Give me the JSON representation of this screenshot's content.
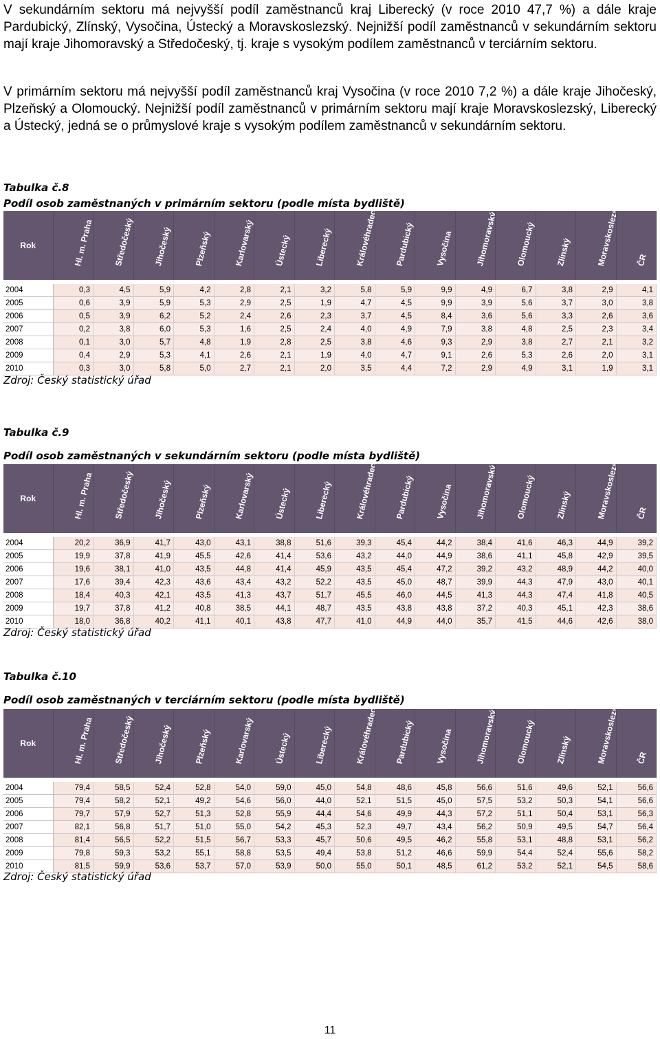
{
  "paragraphs": {
    "p1": "V sekundárním sektoru má nejvyšší podíl zaměstnanců kraj Liberecký (v roce 2010 47,7 %) a dále kraje Pardubický, Zlínský, Vysočina, Ústecký a Moravskoslezský. Nejnižší podíl zaměstnanců v sekundárním sektoru mají kraje Jihomoravský a Středočeský, tj. kraje s vysokým podílem zaměstnanců v terciárním sektoru.",
    "p2": "V primárním sektoru má nejvyšší podíl zaměstnanců kraj Vysočina (v roce 2010 7,2 %) a dále kraje Jihočeský, Plzeňský a Olomoucký. Nejnižší podíl zaměstnanců v primárním sektoru mají kraje Moravskoslezský, Liberecký a Ústecký, jedná se o průmyslové kraje s vysokým podílem zaměstnanců v sekundárním sektoru."
  },
  "header": {
    "rok": "Rok",
    "regions": [
      "Hl. m. Praha",
      "Středočeský",
      "Jihočeský",
      "Plzeňský",
      "Karlovarský",
      "Ústecký",
      "Liberecký",
      "Královéhradecký",
      "Pardubický",
      "Vysočina",
      "Jihomoravský",
      "Olomoucký",
      "Zlínský",
      "Moravskoslezský",
      "ČR"
    ]
  },
  "tables": [
    {
      "label": "Tabulka č.8",
      "title": "Podíl osob zaměstnaných v primárním sektoru (podle místa bydliště)",
      "source": "Zdroj: Český statistický úřad",
      "rows": [
        {
          "year": "2004",
          "values": [
            "0,3",
            "4,5",
            "5,9",
            "4,2",
            "2,8",
            "2,1",
            "3,2",
            "5,8",
            "5,9",
            "9,9",
            "4,9",
            "6,7",
            "3,8",
            "2,9",
            "4,1"
          ]
        },
        {
          "year": "2005",
          "values": [
            "0,6",
            "3,9",
            "5,9",
            "5,3",
            "2,9",
            "2,5",
            "1,9",
            "4,7",
            "4,5",
            "9,9",
            "3,9",
            "5,6",
            "3,7",
            "3,0",
            "3,8"
          ]
        },
        {
          "year": "2006",
          "values": [
            "0,5",
            "3,9",
            "6,2",
            "5,2",
            "2,4",
            "2,6",
            "2,3",
            "3,7",
            "4,5",
            "8,4",
            "3,6",
            "5,6",
            "3,3",
            "2,6",
            "3,6"
          ]
        },
        {
          "year": "2007",
          "values": [
            "0,2",
            "3,8",
            "6,0",
            "5,3",
            "1,6",
            "2,5",
            "2,4",
            "4,0",
            "4,9",
            "7,9",
            "3,8",
            "4,8",
            "2,5",
            "2,3",
            "3,4"
          ]
        },
        {
          "year": "2008",
          "values": [
            "0,1",
            "3,0",
            "5,7",
            "4,8",
            "1,9",
            "2,8",
            "2,5",
            "3,8",
            "4,6",
            "9,3",
            "2,9",
            "3,8",
            "2,7",
            "2,1",
            "3,2"
          ]
        },
        {
          "year": "2009",
          "values": [
            "0,4",
            "2,9",
            "5,3",
            "4,1",
            "2,6",
            "2,1",
            "1,9",
            "4,0",
            "4,7",
            "9,1",
            "2,6",
            "5,3",
            "2,6",
            "2,0",
            "3,1"
          ]
        },
        {
          "year": "2010",
          "values": [
            "0,3",
            "3,0",
            "5,8",
            "5,0",
            "2,7",
            "2,1",
            "2,0",
            "3,5",
            "4,4",
            "7,2",
            "2,9",
            "4,9",
            "3,1",
            "1,9",
            "3,1"
          ]
        }
      ]
    },
    {
      "label": "Tabulka č.9",
      "title": "Podíl osob zaměstnaných v sekundárním sektoru (podle místa bydliště)",
      "source": "Zdroj: Český statistický úřad",
      "rows": [
        {
          "year": "2004",
          "values": [
            "20,2",
            "36,9",
            "41,7",
            "43,0",
            "43,1",
            "38,8",
            "51,6",
            "39,3",
            "45,4",
            "44,2",
            "38,4",
            "41,6",
            "46,3",
            "44,9",
            "39,2"
          ]
        },
        {
          "year": "2005",
          "values": [
            "19,9",
            "37,8",
            "41,9",
            "45,5",
            "42,6",
            "41,4",
            "53,6",
            "43,2",
            "44,0",
            "44,9",
            "38,6",
            "41,1",
            "45,8",
            "42,9",
            "39,5"
          ]
        },
        {
          "year": "2006",
          "values": [
            "19,6",
            "38,1",
            "41,0",
            "43,5",
            "44,8",
            "41,4",
            "45,9",
            "43,5",
            "45,4",
            "47,2",
            "39,2",
            "43,2",
            "48,9",
            "44,2",
            "40,0"
          ]
        },
        {
          "year": "2007",
          "values": [
            "17,6",
            "39,4",
            "42,3",
            "43,6",
            "43,4",
            "43,2",
            "52,2",
            "43,5",
            "45,0",
            "48,7",
            "39,9",
            "44,3",
            "47,9",
            "43,0",
            "40,1"
          ]
        },
        {
          "year": "2008",
          "values": [
            "18,4",
            "40,3",
            "42,1",
            "43,5",
            "41,3",
            "43,7",
            "51,7",
            "45,5",
            "46,0",
            "44,5",
            "41,3",
            "44,3",
            "47,4",
            "41,8",
            "40,5"
          ]
        },
        {
          "year": "2009",
          "values": [
            "19,7",
            "37,8",
            "41,2",
            "40,8",
            "38,5",
            "44,1",
            "48,7",
            "43,5",
            "43,8",
            "43,8",
            "37,2",
            "40,3",
            "45,1",
            "42,3",
            "38,6"
          ]
        },
        {
          "year": "2010",
          "values": [
            "18,0",
            "36,8",
            "40,2",
            "41,1",
            "40,1",
            "43,8",
            "47,7",
            "41,0",
            "44,9",
            "44,0",
            "35,7",
            "41,5",
            "44,6",
            "42,6",
            "38,0"
          ]
        }
      ]
    },
    {
      "label": "Tabulka č.10",
      "title": "Podíl osob zaměstnaných v terciárním sektoru (podle místa bydliště)",
      "source": "Zdroj: Český statistický úřad",
      "rows": [
        {
          "year": "2004",
          "values": [
            "79,4",
            "58,5",
            "52,4",
            "52,8",
            "54,0",
            "59,0",
            "45,0",
            "54,8",
            "48,6",
            "45,8",
            "56,6",
            "51,6",
            "49,6",
            "52,1",
            "56,6"
          ]
        },
        {
          "year": "2005",
          "values": [
            "79,4",
            "58,2",
            "52,1",
            "49,2",
            "54,6",
            "56,0",
            "44,0",
            "52,1",
            "51,5",
            "45,0",
            "57,5",
            "53,2",
            "50,3",
            "54,1",
            "56,6"
          ]
        },
        {
          "year": "2006",
          "values": [
            "79,7",
            "57,9",
            "52,7",
            "51,3",
            "52,8",
            "55,9",
            "44,4",
            "54,6",
            "49,9",
            "44,3",
            "57,2",
            "51,1",
            "50,4",
            "53,1",
            "56,3"
          ]
        },
        {
          "year": "2007",
          "values": [
            "82,1",
            "56,8",
            "51,7",
            "51,0",
            "55,0",
            "54,2",
            "45,3",
            "52,3",
            "49,7",
            "43,4",
            "56,2",
            "50,9",
            "49,5",
            "54,7",
            "56,4"
          ]
        },
        {
          "year": "2008",
          "values": [
            "81,4",
            "56,5",
            "52,2",
            "51,5",
            "56,7",
            "53,3",
            "45,7",
            "50,6",
            "49,5",
            "46,2",
            "55,8",
            "53,1",
            "48,8",
            "53,1",
            "56,2"
          ]
        },
        {
          "year": "2009",
          "values": [
            "79,8",
            "59,3",
            "53,2",
            "55,1",
            "58,8",
            "53,5",
            "49,4",
            "53,8",
            "51,2",
            "46,6",
            "59,9",
            "54,4",
            "52,4",
            "55,6",
            "58,2"
          ]
        },
        {
          "year": "2010",
          "values": [
            "81,5",
            "59,9",
            "53,6",
            "53,7",
            "57,0",
            "53,9",
            "50,0",
            "55,0",
            "50,1",
            "48,5",
            "61,2",
            "53,2",
            "52,1",
            "54,5",
            "58,6"
          ]
        }
      ]
    }
  ],
  "page_number": "11"
}
